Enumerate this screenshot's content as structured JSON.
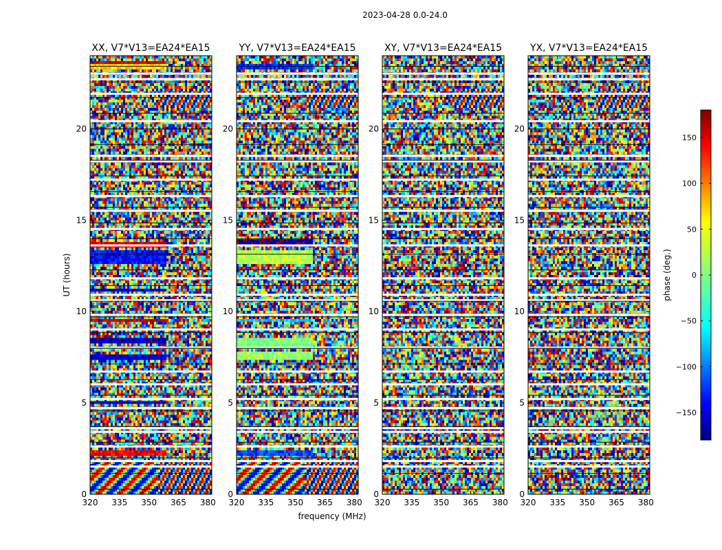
{
  "figure": {
    "suptitle": "2023-04-28 0.0-24.0",
    "xlabel": "frequency (MHz)",
    "ylabel": "UT (hours)"
  },
  "chart_data": {
    "type": "heatmap",
    "colormap": "jet",
    "x_ticks": [
      320,
      335,
      350,
      365,
      380
    ],
    "xlim": [
      320,
      382
    ],
    "y_ticks": [
      0,
      5,
      10,
      15,
      20
    ],
    "ylim": [
      0,
      24
    ],
    "panels": [
      {
        "title": "XX, V7*V13=EA24*EA15",
        "description": "wrapped phase, mostly noise; coherent bands",
        "coherent_bands": [
          {
            "ut": [
              23.2,
              23.5
            ],
            "phase": 60
          },
          {
            "ut": [
              23.5,
              23.7
            ],
            "phase": 150
          },
          {
            "ut": [
              13.5,
              13.8
            ],
            "phase": 150
          },
          {
            "ut": [
              12.6,
              13.3
            ],
            "phase": -130
          },
          {
            "ut": [
              11.1,
              11.3
            ],
            "phase": -150
          },
          {
            "ut": [
              9.4,
              9.6
            ],
            "phase": 160
          },
          {
            "ut": [
              8.3,
              8.6
            ],
            "phase": -160
          },
          {
            "ut": [
              7.4,
              7.6
            ],
            "phase": -150
          },
          {
            "ut": [
              4.9,
              5.1
            ],
            "phase": -150
          },
          {
            "ut": [
              2.1,
              2.4
            ],
            "phase": 140
          }
        ]
      },
      {
        "title": "YY, V7*V13=EA24*EA15",
        "coherent_bands": [
          {
            "ut": [
              23.2,
              23.6
            ],
            "phase": -120
          },
          {
            "ut": [
              13.7,
              13.9
            ],
            "phase": -170
          },
          {
            "ut": [
              12.6,
              13.3
            ],
            "phase": 20
          },
          {
            "ut": [
              9.4,
              9.6
            ],
            "phase": -60
          },
          {
            "ut": [
              8.0,
              8.6
            ],
            "phase": 0
          },
          {
            "ut": [
              7.4,
              7.8
            ],
            "phase": 10
          },
          {
            "ut": [
              2.1,
              2.4
            ],
            "phase": -110
          }
        ]
      },
      {
        "title": "XY, V7*V13=EA24*EA15",
        "coherent_bands": []
      },
      {
        "title": "YX, V7*V13=EA24*EA15",
        "coherent_bands": []
      }
    ],
    "colorbar": {
      "label": "phase (deg.)",
      "range": [
        -180,
        180
      ],
      "ticks": [
        150,
        100,
        50,
        0,
        -50,
        -100,
        -150
      ],
      "tick_labels": [
        "150",
        "100",
        "50",
        "0",
        "−50",
        "−100",
        "−150"
      ]
    },
    "white_gap_rows_ut": [
      23.0,
      22.7,
      21.9,
      20.4,
      18.5,
      18.2,
      17.2,
      16.3,
      15.5,
      14.5,
      13.6,
      11.8,
      10.9,
      10.6,
      9.8,
      9.0,
      8.0,
      6.7,
      6.0,
      5.2,
      4.7,
      3.6,
      3.4,
      2.6,
      1.8,
      1.5
    ]
  }
}
